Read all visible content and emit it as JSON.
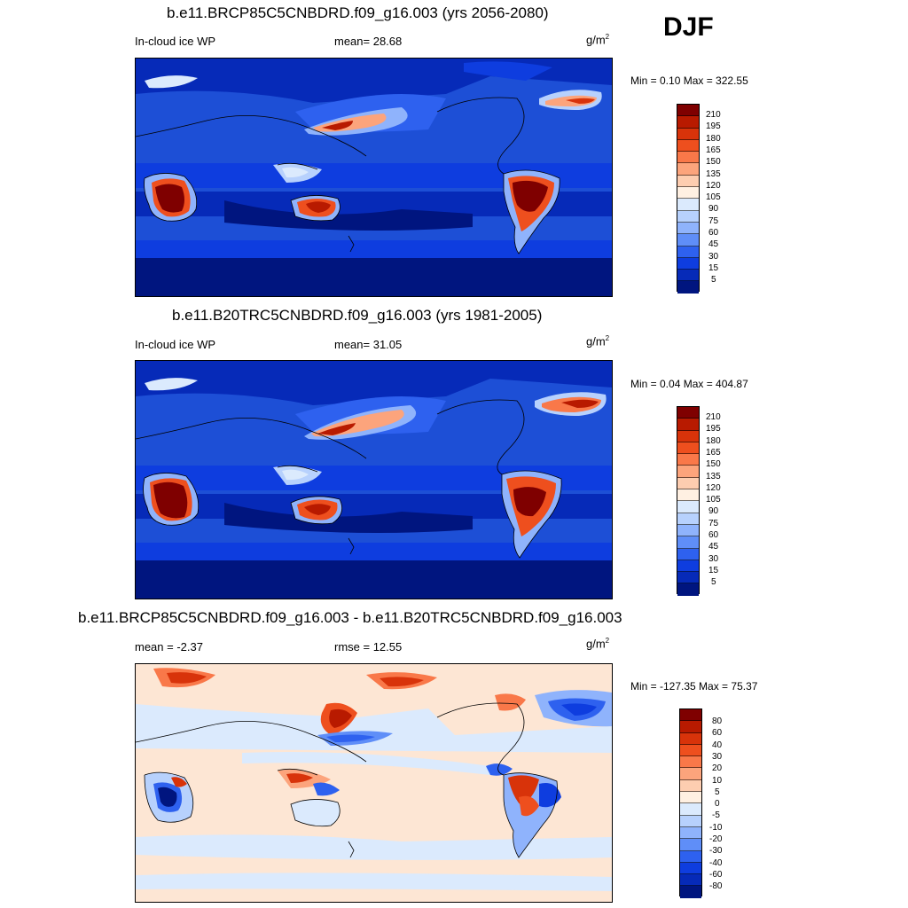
{
  "season": "DJF",
  "panels": [
    {
      "title": "b.e11.BRCP85C5CNBDRD.f09_g16.003 (yrs 2056-2080)",
      "left_label": "In-cloud ice WP",
      "mid_label": "mean=  28.68",
      "units_base": "g/m",
      "units_exp": "2",
      "minmax": "Min =   0.10 Max = 322.55",
      "colorbar_labels": [
        "210",
        "195",
        "180",
        "165",
        "150",
        "135",
        "120",
        "105",
        "90",
        "75",
        "60",
        "45",
        "30",
        "15",
        "5"
      ]
    },
    {
      "title": "b.e11.B20TRC5CNBDRD.f09_g16.003 (yrs 1981-2005)",
      "left_label": "In-cloud ice WP",
      "mid_label": "mean=  31.05",
      "units_base": "g/m",
      "units_exp": "2",
      "minmax": "Min =   0.04 Max = 404.87",
      "colorbar_labels": [
        "210",
        "195",
        "180",
        "165",
        "150",
        "135",
        "120",
        "105",
        "90",
        "75",
        "60",
        "45",
        "30",
        "15",
        "5"
      ]
    },
    {
      "title": "b.e11.BRCP85C5CNBDRD.f09_g16.003 - b.e11.B20TRC5CNBDRD.f09_g16.003",
      "left_label": "mean =  -2.37",
      "mid_label": "rmse =  12.55",
      "units_base": "g/m",
      "units_exp": "2",
      "minmax": "Min = -127.35 Max =  75.37",
      "colorbar_labels": [
        "80",
        "60",
        "40",
        "30",
        "20",
        "10",
        "5",
        "0",
        "-5",
        "-10",
        "-20",
        "-30",
        "-40",
        "-60",
        "-80"
      ]
    }
  ],
  "colors": {
    "abs_scale": [
      "#7f0000",
      "#b81a00",
      "#d8330a",
      "#ee4f1e",
      "#f97849",
      "#fca47c",
      "#fdcdb0",
      "#fff0e2",
      "#dbeafd",
      "#b7d1fd",
      "#8fb3fc",
      "#5f8ef8",
      "#2e61ef",
      "#0e3ddf",
      "#062ab8",
      "#00157f"
    ],
    "diff_scale": [
      "#7f0000",
      "#b81a00",
      "#d8330a",
      "#ee4f1e",
      "#f97849",
      "#fca47c",
      "#fdcdb0",
      "#fff0e2",
      "#dbeafd",
      "#b7d1fd",
      "#8fb3fc",
      "#5f8ef8",
      "#2e61ef",
      "#0e3ddf",
      "#062ab8",
      "#00157f"
    ],
    "ocean_background": "#1d4fd6",
    "diff_background": "#fde6d4"
  }
}
